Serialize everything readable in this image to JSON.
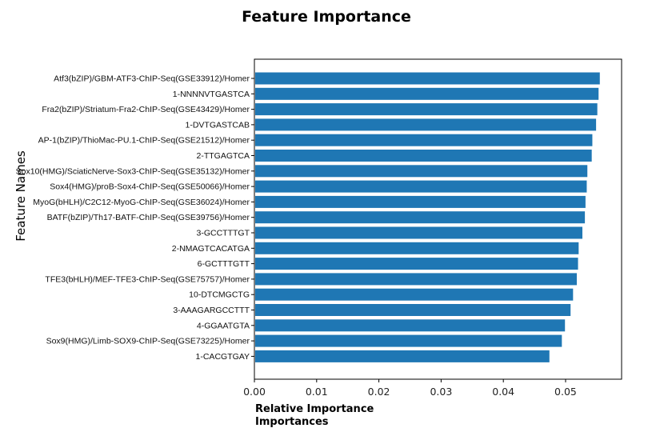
{
  "chart_data": {
    "type": "bar",
    "orientation": "horizontal",
    "title": "Feature Importance",
    "ylabel": "Feature Names",
    "xlabel": "Relative Importance",
    "xlabel_secondary": "Importances",
    "xlim": [
      0,
      0.059
    ],
    "xticks": [
      "0.00",
      "0.01",
      "0.02",
      "0.03",
      "0.04",
      "0.05"
    ],
    "grid": false,
    "bar_color": "#1f77b4",
    "categories": [
      "Atf3(bZIP)/GBM-ATF3-ChIP-Seq(GSE33912)/Homer",
      "1-NNNNVTGASTCA",
      "Fra2(bZIP)/Striatum-Fra2-ChIP-Seq(GSE43429)/Homer",
      "1-DVTGASTCAB",
      "AP-1(bZIP)/ThioMac-PU.1-ChIP-Seq(GSE21512)/Homer",
      "2-TTGAGTCA",
      "Sox10(HMG)/SciaticNerve-Sox3-ChIP-Seq(GSE35132)/Homer",
      "Sox4(HMG)/proB-Sox4-ChIP-Seq(GSE50066)/Homer",
      "MyoG(bHLH)/C2C12-MyoG-ChIP-Seq(GSE36024)/Homer",
      "BATF(bZIP)/Th17-BATF-ChIP-Seq(GSE39756)/Homer",
      "3-GCCTTTGT",
      "2-NMAGTCACATGA",
      "6-GCTTTGTT",
      "TFE3(bHLH)/MEF-TFE3-ChIP-Seq(GSE75757)/Homer",
      "10-DTCMGCTG",
      "3-AAAGARGCCTTT",
      "4-GGAATGTA",
      "Sox9(HMG)/Limb-SOX9-ChIP-Seq(GSE73225)/Homer",
      "1-CACGTGAY"
    ],
    "values": [
      0.0555,
      0.0553,
      0.0551,
      0.0549,
      0.0543,
      0.0542,
      0.0535,
      0.0534,
      0.0532,
      0.0531,
      0.0527,
      0.0521,
      0.052,
      0.0518,
      0.0512,
      0.0508,
      0.0499,
      0.0494,
      0.0474
    ]
  }
}
